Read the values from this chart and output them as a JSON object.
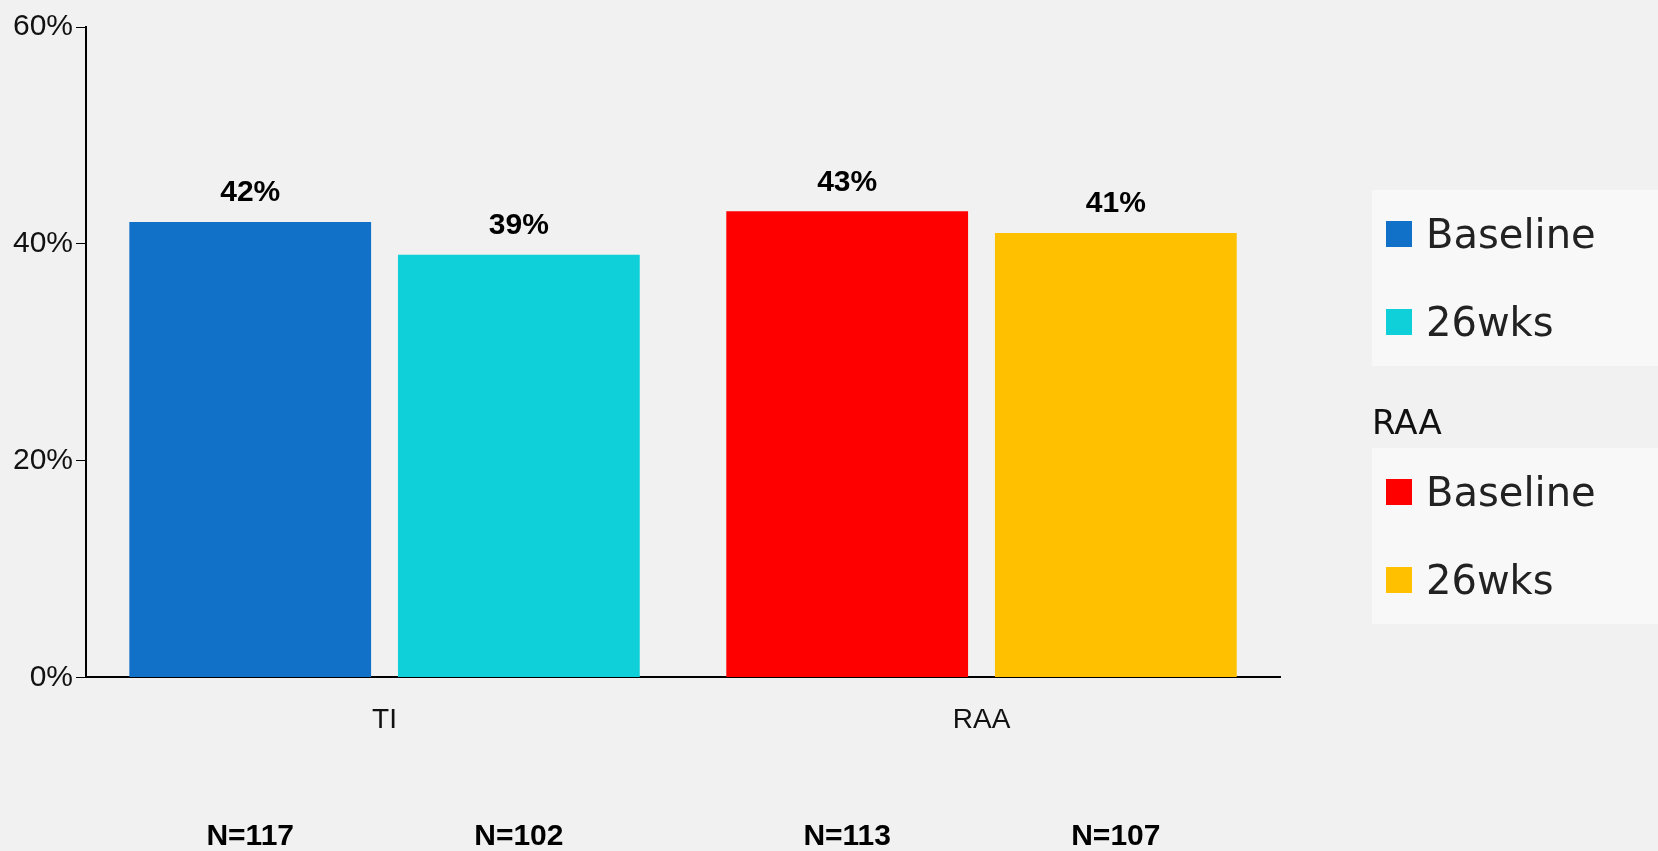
{
  "chart_data": {
    "type": "bar",
    "categories": [
      "TI",
      "RAA"
    ],
    "series": [
      {
        "name": "Baseline",
        "color": "#1170c8",
        "values": [
          42,
          null
        ],
        "value_labels": [
          "42%",
          null
        ]
      },
      {
        "name": "26wks",
        "color": "#0fd0d8",
        "values": [
          39,
          null
        ],
        "value_labels": [
          "39%",
          null
        ]
      },
      {
        "name": "Baseline",
        "color": "#ff0000",
        "values": [
          null,
          43
        ],
        "value_labels": [
          null,
          "43%"
        ]
      },
      {
        "name": "26wks",
        "color": "#ffc000",
        "values": [
          null,
          41
        ],
        "value_labels": [
          null,
          "41%"
        ]
      }
    ],
    "ylim": [
      0,
      60
    ],
    "yticks": [
      {
        "value": 0,
        "label": "0%"
      },
      {
        "value": 20,
        "label": "20%"
      },
      {
        "value": 40,
        "label": "40%"
      },
      {
        "value": 60,
        "label": "60%"
      }
    ],
    "grid": false,
    "legend": "right",
    "annotations": [
      "RAA",
      "N=117",
      "N=102",
      "N=113",
      "N=107"
    ]
  }
}
